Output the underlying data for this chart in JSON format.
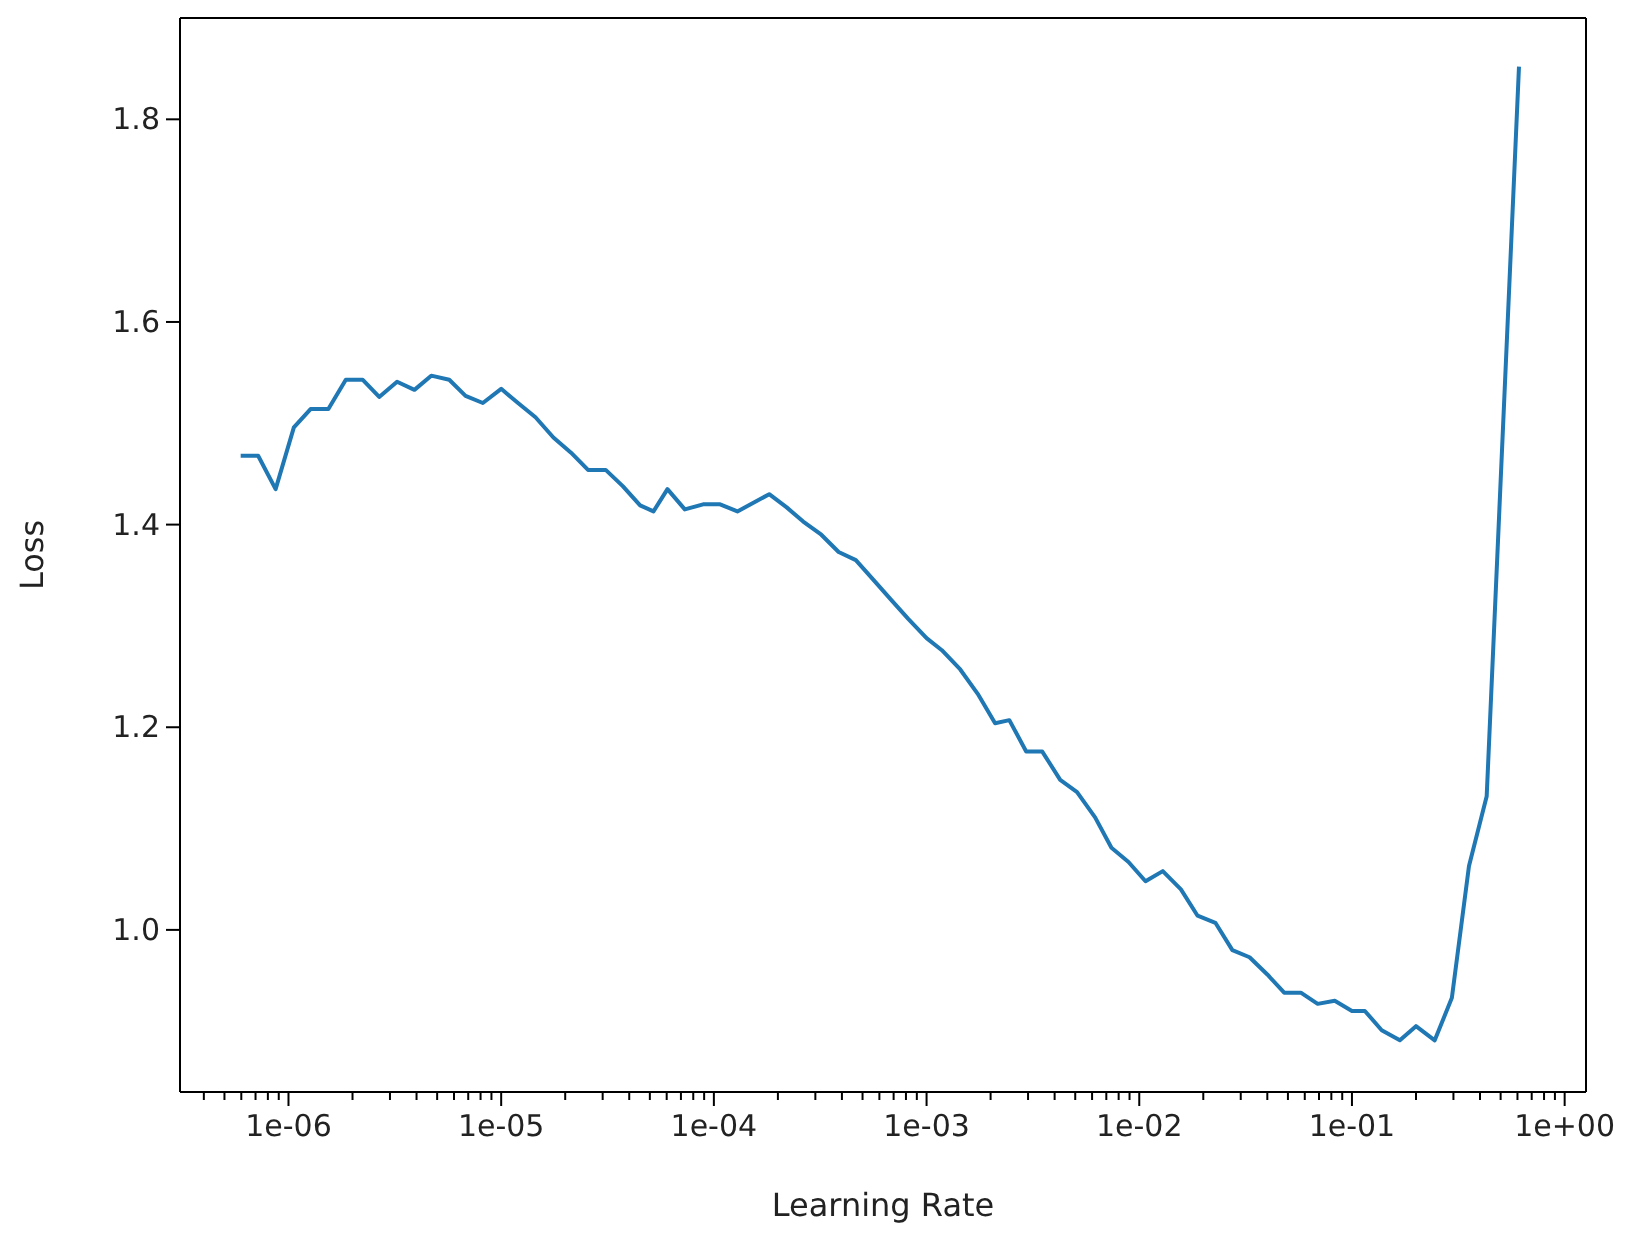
{
  "chart_data": {
    "type": "line",
    "xlabel": "Learning Rate",
    "ylabel": "Loss",
    "log": "x",
    "marker": "none",
    "line_style": "solid",
    "x": [
      5.96e-07,
      7.2e-07,
      8.7e-07,
      1.06e-06,
      1.27e-06,
      1.54e-06,
      1.86e-06,
      2.23e-06,
      2.67e-06,
      3.24e-06,
      3.91e-06,
      4.69e-06,
      5.7e-06,
      6.8e-06,
      8.2e-06,
      1e-05,
      1.2e-05,
      1.45e-05,
      1.76e-05,
      2.13e-05,
      2.56e-05,
      3.1e-05,
      3.73e-05,
      4.5e-05,
      5.2e-05,
      6.05e-05,
      7.3e-05,
      8.9e-05,
      0.000107,
      0.000129,
      0.000155,
      0.000182,
      0.00022,
      0.000263,
      0.00032,
      0.000386,
      0.000465,
      0.00056,
      0.00068,
      0.00082,
      0.001,
      0.00118,
      0.00144,
      0.00174,
      0.0021,
      0.00245,
      0.00294,
      0.0035,
      0.00425,
      0.0051,
      0.0062,
      0.0074,
      0.0089,
      0.0107,
      0.0129,
      0.0157,
      0.0188,
      0.0228,
      0.0274,
      0.033,
      0.04,
      0.048,
      0.0575,
      0.069,
      0.083,
      0.1,
      0.115,
      0.138,
      0.168,
      0.2,
      0.245,
      0.295,
      0.355,
      0.43,
      0.61
    ],
    "series": [
      {
        "color": "#1f77b4",
        "values": [
          1.468,
          1.468,
          1.435,
          1.496,
          1.514,
          1.514,
          1.543,
          1.543,
          1.526,
          1.541,
          1.533,
          1.547,
          1.543,
          1.527,
          1.52,
          1.534,
          1.52,
          1.506,
          1.486,
          1.471,
          1.454,
          1.454,
          1.438,
          1.419,
          1.413,
          1.435,
          1.415,
          1.42,
          1.42,
          1.413,
          1.422,
          1.43,
          1.417,
          1.403,
          1.39,
          1.373,
          1.365,
          1.346,
          1.326,
          1.307,
          1.288,
          1.276,
          1.257,
          1.233,
          1.204,
          1.207,
          1.176,
          1.176,
          1.148,
          1.136,
          1.111,
          1.081,
          1.067,
          1.048,
          1.058,
          1.04,
          1.014,
          1.007,
          0.98,
          0.973,
          0.956,
          0.938,
          0.938,
          0.927,
          0.93,
          0.92,
          0.92,
          0.901,
          0.891,
          0.905,
          0.891,
          0.933,
          1.063,
          1.132,
          1.852
        ]
      }
    ],
    "xlim": [
      3.09e-07,
      1.26
    ],
    "ylim": [
      0.84,
      1.9
    ],
    "xticks": [
      {
        "value": 4e-07,
        "label": null
      },
      {
        "value": 5e-07,
        "label": null
      },
      {
        "value": 6e-07,
        "label": null
      },
      {
        "value": 7e-07,
        "label": null
      },
      {
        "value": 8e-07,
        "label": null
      },
      {
        "value": 9e-07,
        "label": null
      },
      {
        "value": 1e-06,
        "label": "1e-06"
      },
      {
        "value": 2e-06,
        "label": null
      },
      {
        "value": 3e-06,
        "label": null
      },
      {
        "value": 4e-06,
        "label": null
      },
      {
        "value": 5e-06,
        "label": null
      },
      {
        "value": 6e-06,
        "label": null
      },
      {
        "value": 7e-06,
        "label": null
      },
      {
        "value": 8e-06,
        "label": null
      },
      {
        "value": 9e-06,
        "label": null
      },
      {
        "value": 1e-05,
        "label": "1e-05"
      },
      {
        "value": 2e-05,
        "label": null
      },
      {
        "value": 3e-05,
        "label": null
      },
      {
        "value": 4e-05,
        "label": null
      },
      {
        "value": 5e-05,
        "label": null
      },
      {
        "value": 6e-05,
        "label": null
      },
      {
        "value": 7e-05,
        "label": null
      },
      {
        "value": 8e-05,
        "label": null
      },
      {
        "value": 9e-05,
        "label": null
      },
      {
        "value": 0.0001,
        "label": "1e-04"
      },
      {
        "value": 0.0002,
        "label": null
      },
      {
        "value": 0.0003,
        "label": null
      },
      {
        "value": 0.0004,
        "label": null
      },
      {
        "value": 0.0005,
        "label": null
      },
      {
        "value": 0.0006,
        "label": null
      },
      {
        "value": 0.0007,
        "label": null
      },
      {
        "value": 0.0008,
        "label": null
      },
      {
        "value": 0.0009,
        "label": null
      },
      {
        "value": 0.001,
        "label": "1e-03"
      },
      {
        "value": 0.002,
        "label": null
      },
      {
        "value": 0.003,
        "label": null
      },
      {
        "value": 0.004,
        "label": null
      },
      {
        "value": 0.005,
        "label": null
      },
      {
        "value": 0.006,
        "label": null
      },
      {
        "value": 0.007,
        "label": null
      },
      {
        "value": 0.008,
        "label": null
      },
      {
        "value": 0.009,
        "label": null
      },
      {
        "value": 0.01,
        "label": "1e-02"
      },
      {
        "value": 0.02,
        "label": null
      },
      {
        "value": 0.03,
        "label": null
      },
      {
        "value": 0.04,
        "label": null
      },
      {
        "value": 0.05,
        "label": null
      },
      {
        "value": 0.06,
        "label": null
      },
      {
        "value": 0.07,
        "label": null
      },
      {
        "value": 0.08,
        "label": null
      },
      {
        "value": 0.09,
        "label": null
      },
      {
        "value": 0.1,
        "label": "1e-01"
      },
      {
        "value": 0.2,
        "label": null
      },
      {
        "value": 0.3,
        "label": null
      },
      {
        "value": 0.4,
        "label": null
      },
      {
        "value": 0.5,
        "label": null
      },
      {
        "value": 0.6,
        "label": null
      },
      {
        "value": 0.7,
        "label": null
      },
      {
        "value": 0.8,
        "label": null
      },
      {
        "value": 0.9,
        "label": null
      },
      {
        "value": 1,
        "label": "1e+00"
      }
    ],
    "yticks": [
      {
        "value": 1,
        "label": "1.0"
      },
      1.2,
      1.4,
      1.6,
      1.8
    ]
  }
}
